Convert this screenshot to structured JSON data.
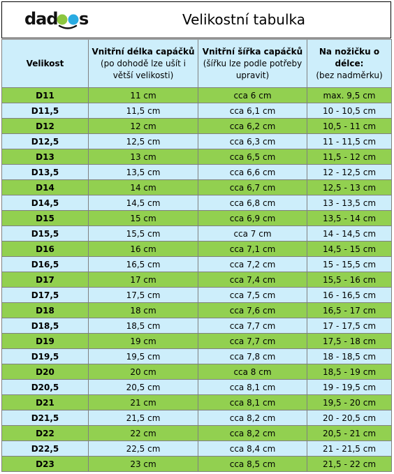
{
  "logo": {
    "text": "dadoos",
    "colors": {
      "text": "#111111",
      "ball_green": "#8cc63f",
      "ball_blue": "#29abe2",
      "smile": "#111111"
    }
  },
  "title": "Velikostní tabulka",
  "columns": [
    {
      "title": "Velikost",
      "note": []
    },
    {
      "title": "Vnitřní délka capáčků",
      "note": [
        "(po dohodě lze ušít i",
        "větší velikosti)"
      ]
    },
    {
      "title": "Vnitřní šířka capáčků",
      "note": [
        "(šířku lze podle potřeby",
        "upravit)"
      ]
    },
    {
      "title": "Na nožičku o",
      "title2": "délce:",
      "note": [
        "(bez nadměrku)"
      ]
    }
  ],
  "rows": [
    [
      "D11",
      "11 cm",
      "cca 6 cm",
      "max. 9,5 cm"
    ],
    [
      "D11,5",
      "11,5 cm",
      "cca 6,1 cm",
      "10 - 10,5 cm"
    ],
    [
      "D12",
      "12 cm",
      "cca 6,2 cm",
      "10,5 - 11 cm"
    ],
    [
      "D12,5",
      "12,5 cm",
      "cca 6,3 cm",
      "11 - 11,5 cm"
    ],
    [
      "D13",
      "13 cm",
      "cca 6,5 cm",
      "11,5 - 12 cm"
    ],
    [
      "D13,5",
      "13,5 cm",
      "cca 6,6 cm",
      "12 - 12,5 cm"
    ],
    [
      "D14",
      "14 cm",
      "cca 6,7 cm",
      "12,5 - 13 cm"
    ],
    [
      "D14,5",
      "14,5 cm",
      "cca 6,8 cm",
      "13 - 13,5 cm"
    ],
    [
      "D15",
      "15 cm",
      "cca 6,9 cm",
      "13,5 - 14 cm"
    ],
    [
      "D15,5",
      "15,5 cm",
      "cca 7 cm",
      "14 - 14,5 cm"
    ],
    [
      "D16",
      "16 cm",
      "cca 7,1 cm",
      "14,5 - 15 cm"
    ],
    [
      "D16,5",
      "16,5 cm",
      "cca 7,2 cm",
      "15 - 15,5 cm"
    ],
    [
      "D17",
      "17 cm",
      "cca 7,4 cm",
      "15,5 - 16 cm"
    ],
    [
      "D17,5",
      "17,5 cm",
      "cca 7,5 cm",
      "16 - 16,5 cm"
    ],
    [
      "D18",
      "18 cm",
      "cca 7,6 cm",
      "16,5 - 17 cm"
    ],
    [
      "D18,5",
      "18,5 cm",
      "cca 7,7 cm",
      "17 - 17,5 cm"
    ],
    [
      "D19",
      "19 cm",
      "cca 7,7 cm",
      "17,5 - 18 cm"
    ],
    [
      "D19,5",
      "19,5 cm",
      "cca 7,8 cm",
      "18 - 18,5 cm"
    ],
    [
      "D20",
      "20 cm",
      "cca 8 cm",
      "18,5 - 19 cm"
    ],
    [
      "D20,5",
      "20,5 cm",
      "cca 8,1 cm",
      "19 - 19,5 cm"
    ],
    [
      "D21",
      "21 cm",
      "cca 8,1 cm",
      "19,5 - 20 cm"
    ],
    [
      "D21,5",
      "21,5 cm",
      "cca 8,2 cm",
      "20 - 20,5 cm"
    ],
    [
      "D22",
      "22 cm",
      "cca 8,2 cm",
      "20,5 - 21 cm"
    ],
    [
      "D22,5",
      "22,5 cm",
      "cca 8,4 cm",
      "21 - 21,5 cm"
    ],
    [
      "D23",
      "23 cm",
      "cca 8,5 cm",
      "21,5 - 22 cm"
    ]
  ],
  "colors": {
    "row_green": "#92d050",
    "row_blue": "#cdeefb",
    "header_bg": "#cdeefb",
    "grid": "#808080"
  }
}
